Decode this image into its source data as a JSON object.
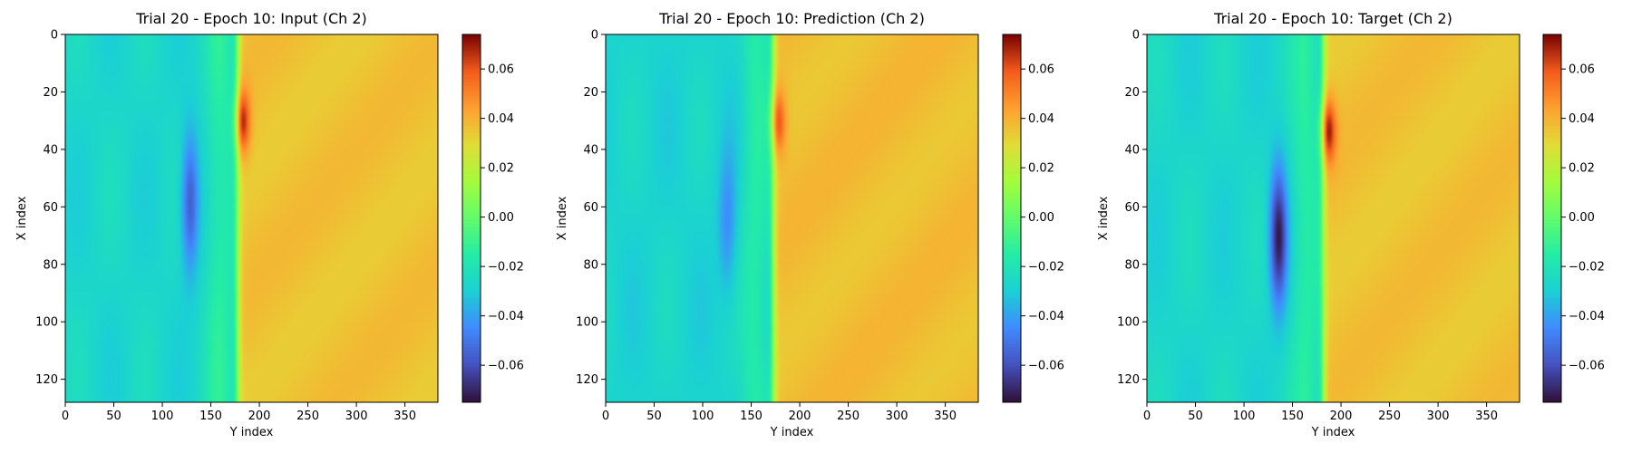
{
  "chart_data": [
    {
      "type": "heatmap",
      "title": "Trial 20 - Epoch 10: Input (Ch 2)",
      "xlabel": "Y index",
      "ylabel": "X index",
      "xlim": [
        0,
        384
      ],
      "ylim": [
        128,
        0
      ],
      "xticks": [
        0,
        50,
        100,
        150,
        200,
        250,
        300,
        350
      ],
      "yticks": [
        0,
        20,
        40,
        60,
        80,
        100,
        120
      ],
      "colormap": "turbo",
      "colorbar": {
        "vmin": -0.075,
        "vmax": 0.074,
        "ticks": [
          "0.06",
          "0.04",
          "0.02",
          "0.00",
          "−0.02",
          "−0.04",
          "−0.06"
        ],
        "tick_values": [
          0.06,
          0.04,
          0.02,
          0.0,
          -0.02,
          -0.04,
          -0.06
        ]
      },
      "field": {
        "front_y": 177,
        "vortex_center": [
          128,
          58
        ],
        "vortex_min": -0.058,
        "peak_x": 30,
        "peak_value": 0.07,
        "background_right": 0.036,
        "background_left": -0.027
      }
    },
    {
      "type": "heatmap",
      "title": "Trial 20 - Epoch 10: Prediction (Ch 2)",
      "xlabel": "Y index",
      "ylabel": "X index",
      "xlim": [
        0,
        384
      ],
      "ylim": [
        128,
        0
      ],
      "xticks": [
        0,
        50,
        100,
        150,
        200,
        250,
        300,
        350
      ],
      "yticks": [
        0,
        20,
        40,
        60,
        80,
        100,
        120
      ],
      "colormap": "turbo",
      "colorbar": {
        "vmin": -0.075,
        "vmax": 0.074,
        "ticks": [
          "0.06",
          "0.04",
          "0.02",
          "0.00",
          "−0.02",
          "−0.04",
          "−0.06"
        ],
        "tick_values": [
          0.06,
          0.04,
          0.02,
          0.0,
          -0.02,
          -0.04,
          -0.06
        ]
      },
      "field": {
        "front_y": 172,
        "vortex_center": [
          125,
          65
        ],
        "vortex_min": -0.045,
        "peak_x": 30,
        "peak_value": 0.065,
        "background_right": 0.037,
        "background_left": -0.028
      }
    },
    {
      "type": "heatmap",
      "title": "Trial 20 - Epoch 10: Target (Ch 2)",
      "xlabel": "Y index",
      "ylabel": "X index",
      "xlim": [
        0,
        384
      ],
      "ylim": [
        128,
        0
      ],
      "xticks": [
        0,
        50,
        100,
        150,
        200,
        250,
        300,
        350
      ],
      "yticks": [
        0,
        20,
        40,
        60,
        80,
        100,
        120
      ],
      "colormap": "turbo",
      "colorbar": {
        "vmin": -0.075,
        "vmax": 0.074,
        "ticks": [
          "0.06",
          "0.04",
          "0.02",
          "0.00",
          "−0.02",
          "−0.04",
          "−0.06"
        ],
        "tick_values": [
          0.06,
          0.04,
          0.02,
          0.0,
          -0.02,
          -0.04,
          -0.06
        ]
      },
      "field": {
        "front_y": 181,
        "vortex_center": [
          135,
          70
        ],
        "vortex_min": -0.072,
        "peak_x": 33,
        "peak_value": 0.072,
        "background_right": 0.036,
        "background_left": -0.027
      }
    }
  ]
}
